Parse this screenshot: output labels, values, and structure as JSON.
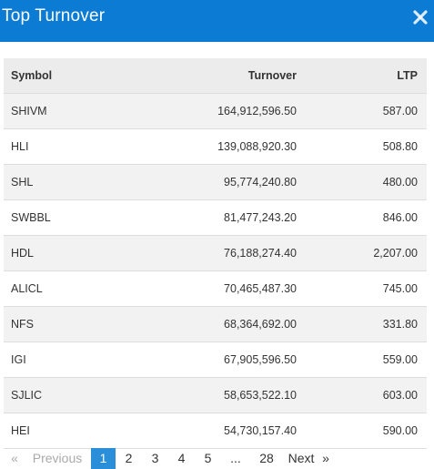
{
  "header": {
    "title": "Top Turnover",
    "close_icon": "close-icon",
    "background_color": "#0b7bd4"
  },
  "table": {
    "columns": [
      "Symbol",
      "Turnover",
      "LTP"
    ],
    "rows": [
      {
        "symbol": "SHIVM",
        "turnover": "164,912,596.50",
        "ltp": "587.00"
      },
      {
        "symbol": "HLI",
        "turnover": "139,088,920.30",
        "ltp": "508.80"
      },
      {
        "symbol": "SHL",
        "turnover": "95,774,240.80",
        "ltp": "480.00"
      },
      {
        "symbol": "SWBBL",
        "turnover": "81,477,243.20",
        "ltp": "846.00"
      },
      {
        "symbol": "HDL",
        "turnover": "76,188,274.40",
        "ltp": "2,207.00"
      },
      {
        "symbol": "ALICL",
        "turnover": "70,465,487.30",
        "ltp": "745.00"
      },
      {
        "symbol": "NFS",
        "turnover": "68,364,692.00",
        "ltp": "331.80"
      },
      {
        "symbol": "IGI",
        "turnover": "67,905,596.50",
        "ltp": "559.00"
      },
      {
        "symbol": "SJLIC",
        "turnover": "58,653,522.10",
        "ltp": "603.00"
      },
      {
        "symbol": "HEI",
        "turnover": "54,730,157.40",
        "ltp": "590.00"
      }
    ]
  },
  "pagination": {
    "prev_arrow": "«",
    "previous_label": "Previous",
    "pages": [
      "1",
      "2",
      "3",
      "4",
      "5"
    ],
    "ellipsis": "...",
    "last_page": "28",
    "next_label": "Next",
    "next_arrow": "»",
    "active_color": "#2a8fd8"
  }
}
